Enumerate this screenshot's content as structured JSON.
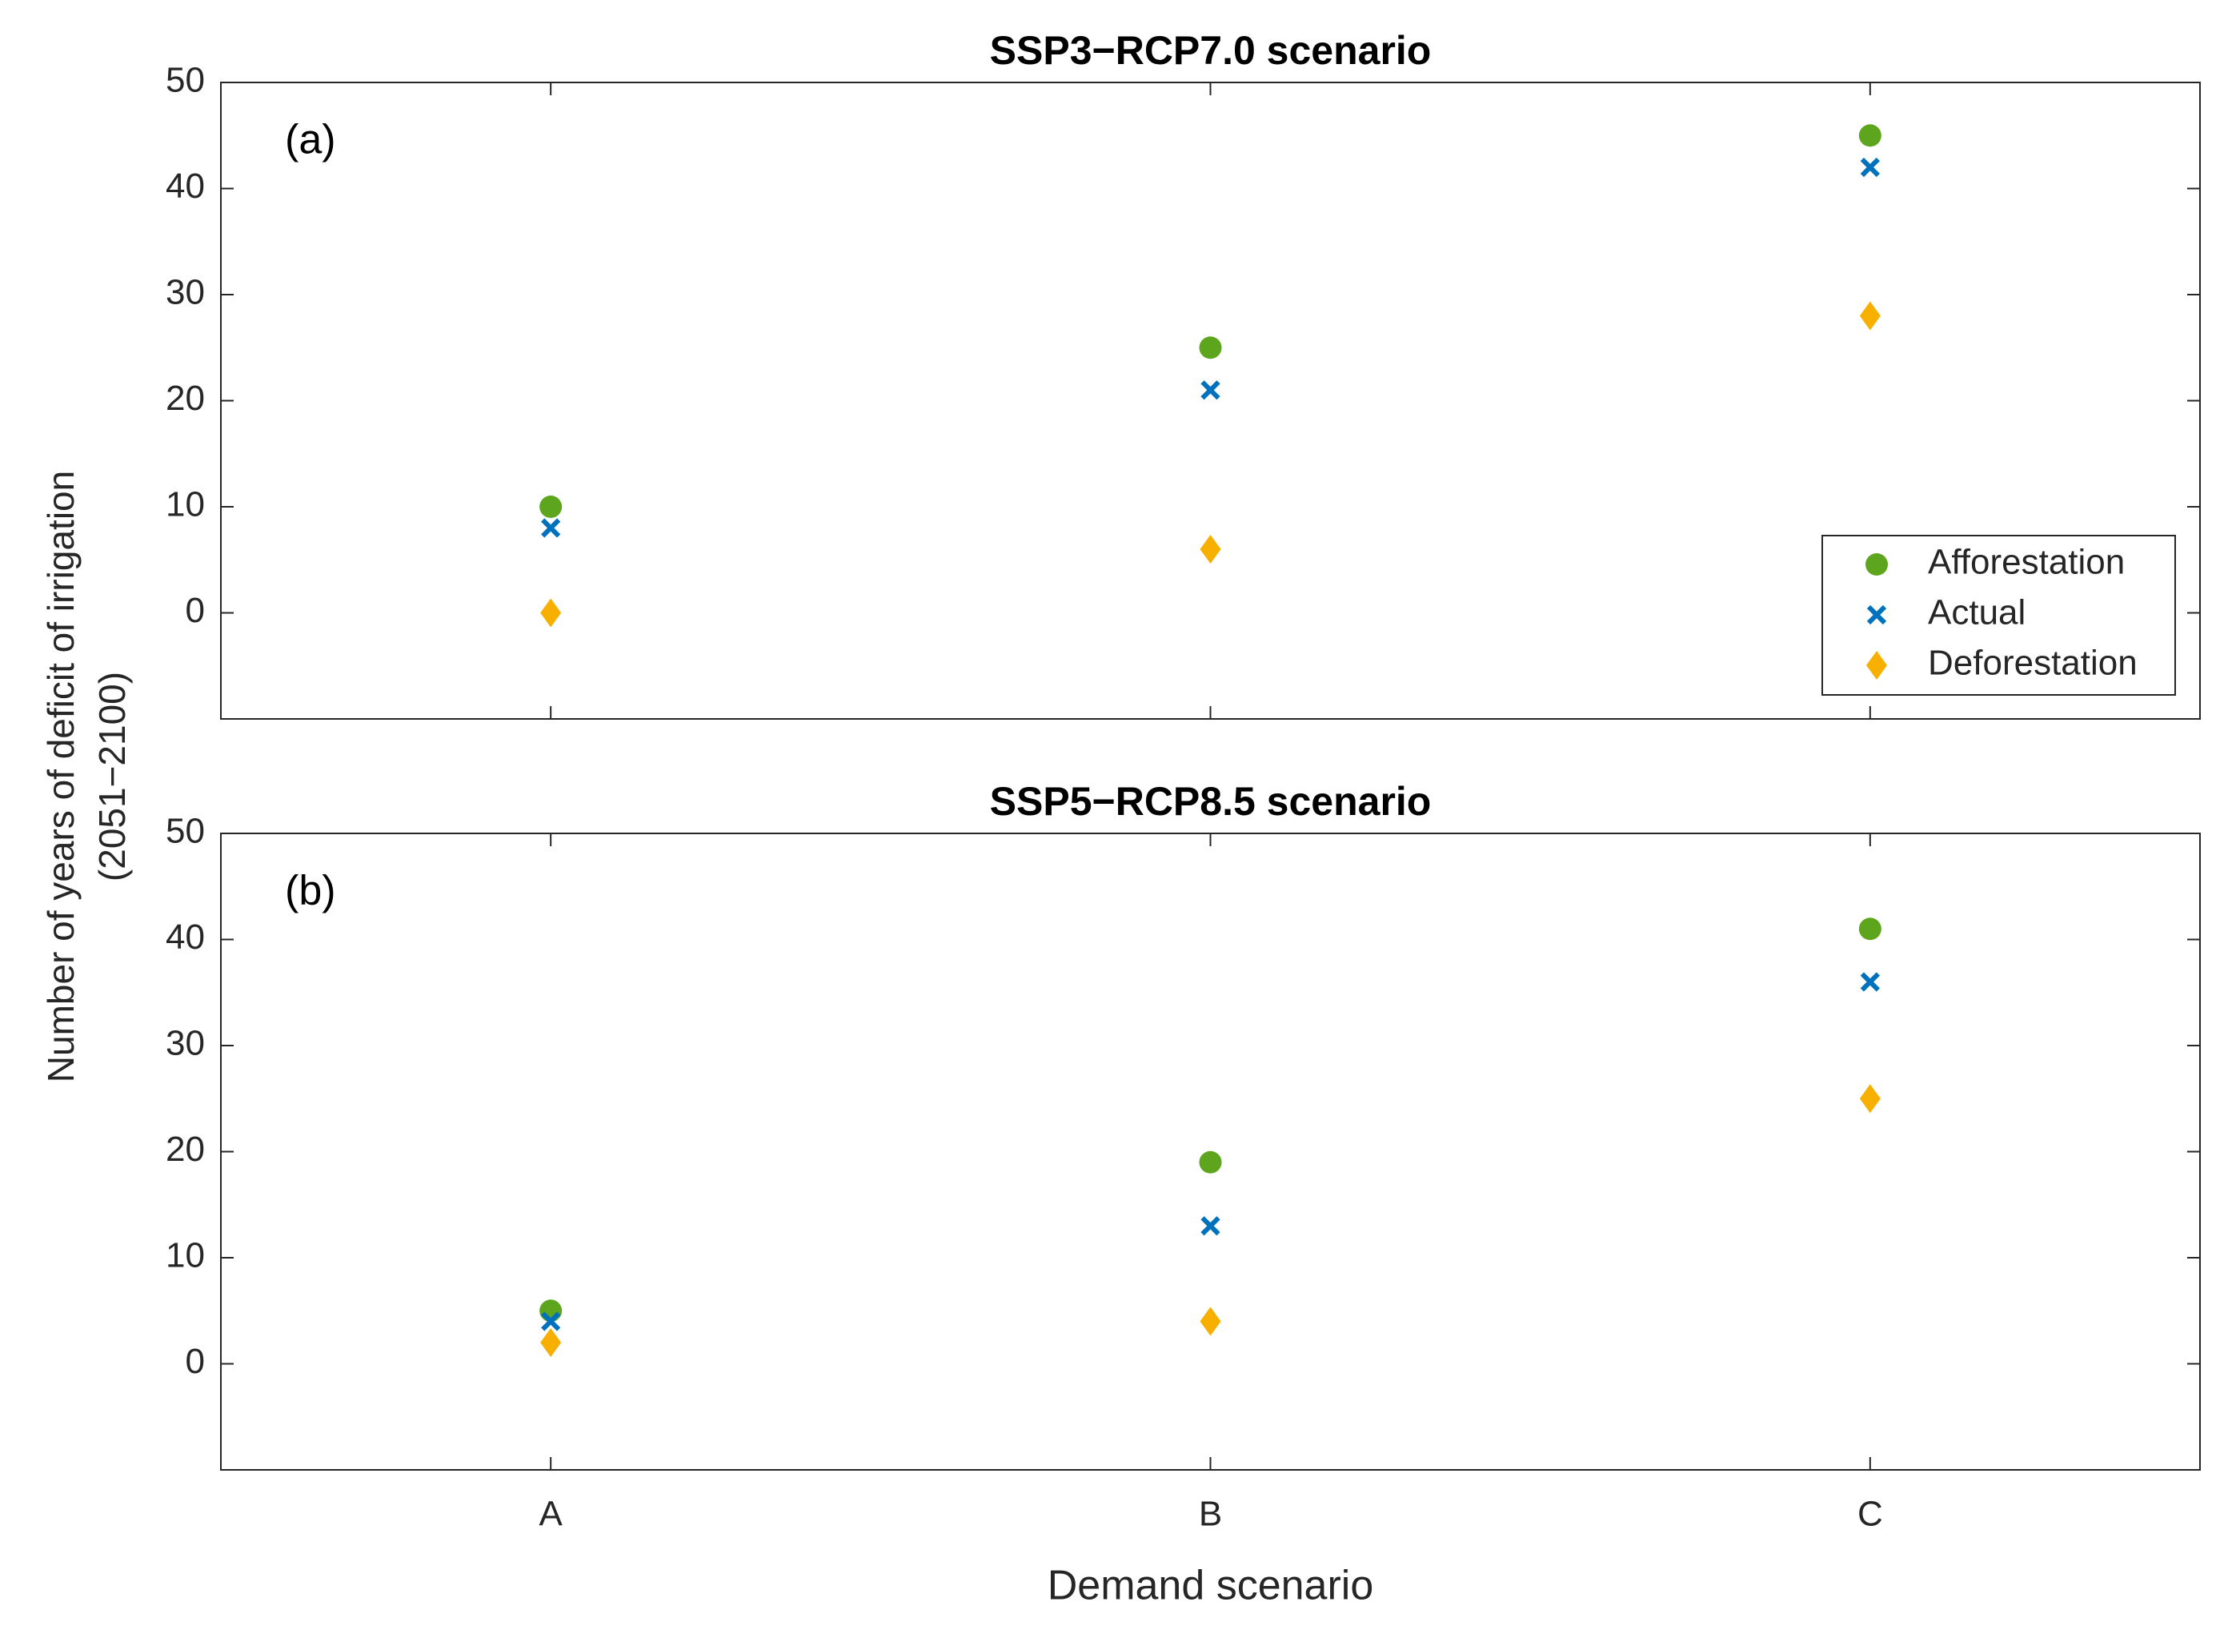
{
  "chart_data": [
    {
      "type": "scatter",
      "title": "SSP3−RCP7.0 scenario",
      "panel_label": "(a)",
      "ylabel": [
        "Number of years of deficit of irrigation",
        "(2051−2100)"
      ],
      "ylim": [
        -10,
        50
      ],
      "yticks": [
        0,
        10,
        20,
        30,
        40,
        50
      ],
      "legend": "lower right",
      "series": [
        {
          "name": "Afforestation",
          "color": "#5ca51c",
          "marker": "circle",
          "values": [
            10,
            25,
            45
          ]
        },
        {
          "name": "Actual",
          "color": "#0072bd",
          "marker": "x",
          "values": [
            8,
            21,
            42
          ]
        },
        {
          "name": "Deforestation",
          "color": "#f7b000",
          "marker": "diamond",
          "values": [
            0,
            6,
            28
          ]
        }
      ]
    },
    {
      "type": "scatter",
      "title": "SSP5−RCP8.5 scenario",
      "panel_label": "(b)",
      "xlabel": "Demand scenario",
      "categories": [
        "A",
        "B",
        "C"
      ],
      "ylim": [
        -10,
        50
      ],
      "yticks": [
        0,
        10,
        20,
        30,
        40,
        50
      ],
      "series": [
        {
          "color": "#5ca51c",
          "marker": "circle",
          "values": [
            5,
            19,
            41
          ]
        },
        {
          "color": "#0072bd",
          "marker": "x",
          "values": [
            4,
            13,
            36
          ]
        },
        {
          "color": "#f7b000",
          "marker": "diamond",
          "values": [
            2,
            4,
            25
          ]
        }
      ]
    }
  ]
}
